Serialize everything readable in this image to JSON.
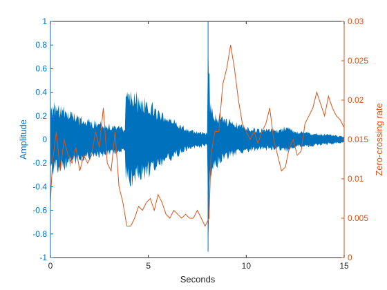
{
  "chart_data": {
    "type": "line",
    "xlabel": "Seconds",
    "ylabel_left": "Amplitude",
    "ylabel_right": "Zero-crossing rate",
    "xlim": [
      0,
      15
    ],
    "ylim_left": [
      -1,
      1
    ],
    "ylim_right": [
      0,
      0.03
    ],
    "x_ticks": [
      "0",
      "5",
      "10",
      "15"
    ],
    "y_left_ticks": [
      "-1",
      "-0.8",
      "-0.6",
      "-0.4",
      "-0.2",
      "0",
      "0.2",
      "0.4",
      "0.6",
      "0.8",
      "1"
    ],
    "y_right_ticks": [
      "0",
      "0.005",
      "0.01",
      "0.015",
      "0.02",
      "0.025",
      "0.03"
    ],
    "grid": false,
    "colors": {
      "amplitude": "#0072BD",
      "zcr": "#D95319",
      "axis": "#262626"
    },
    "series": [
      {
        "axis": "left",
        "envelope": {
          "x": [
            0.0,
            0.2,
            0.5,
            1.0,
            1.5,
            2.0,
            2.5,
            3.0,
            3.5,
            3.8,
            3.85,
            4.0,
            4.5,
            5.0,
            5.5,
            6.0,
            6.5,
            7.0,
            7.5,
            8.0,
            8.05,
            8.15,
            8.3,
            8.5,
            9.0,
            9.5,
            10.0,
            10.5,
            11.0,
            11.5,
            12.0,
            12.5,
            13.0,
            13.5,
            14.0,
            14.5,
            15.0
          ],
          "upper": [
            0.3,
            0.35,
            0.3,
            0.25,
            0.2,
            0.18,
            0.16,
            0.14,
            0.12,
            0.1,
            0.4,
            0.45,
            0.4,
            0.35,
            0.28,
            0.22,
            0.15,
            0.1,
            0.08,
            0.06,
            1.0,
            0.35,
            0.3,
            0.25,
            0.2,
            0.15,
            0.12,
            0.1,
            0.1,
            0.09,
            0.12,
            0.08,
            0.07,
            0.06,
            0.05,
            0.04,
            0.03
          ],
          "lower": [
            -0.3,
            -0.32,
            -0.28,
            -0.25,
            -0.2,
            -0.18,
            -0.16,
            -0.14,
            -0.12,
            -0.1,
            -0.4,
            -0.42,
            -0.38,
            -0.33,
            -0.27,
            -0.2,
            -0.15,
            -0.1,
            -0.08,
            -0.06,
            -0.95,
            -0.35,
            -0.3,
            -0.25,
            -0.18,
            -0.14,
            -0.12,
            -0.1,
            -0.1,
            -0.09,
            -0.12,
            -0.08,
            -0.07,
            -0.06,
            -0.05,
            -0.04,
            -0.03
          ]
        }
      },
      {
        "axis": "right",
        "x": [
          0.0,
          0.1,
          0.3,
          0.5,
          0.7,
          0.9,
          1.1,
          1.3,
          1.5,
          1.7,
          1.9,
          2.1,
          2.3,
          2.5,
          2.7,
          2.9,
          3.1,
          3.3,
          3.5,
          3.7,
          3.9,
          4.1,
          4.3,
          4.5,
          4.7,
          4.9,
          5.1,
          5.3,
          5.5,
          5.7,
          5.9,
          6.1,
          6.3,
          6.5,
          6.7,
          6.9,
          7.1,
          7.3,
          7.5,
          7.7,
          7.9,
          8.1,
          8.2,
          8.4,
          8.6,
          8.8,
          9.0,
          9.2,
          9.4,
          9.6,
          9.8,
          10.0,
          10.2,
          10.4,
          10.6,
          10.8,
          11.0,
          11.2,
          11.4,
          11.6,
          11.8,
          12.0,
          12.2,
          12.4,
          12.6,
          12.8,
          13.0,
          13.2,
          13.4,
          13.6,
          13.8,
          14.0,
          14.2,
          14.4,
          14.6,
          14.8,
          15.0
        ],
        "values": [
          0.007,
          0.012,
          0.016,
          0.011,
          0.015,
          0.013,
          0.012,
          0.014,
          0.011,
          0.013,
          0.012,
          0.013,
          0.016,
          0.014,
          0.019,
          0.012,
          0.011,
          0.016,
          0.009,
          0.007,
          0.004,
          0.004,
          0.005,
          0.0065,
          0.006,
          0.007,
          0.0075,
          0.006,
          0.008,
          0.007,
          0.0055,
          0.005,
          0.006,
          0.0055,
          0.005,
          0.0055,
          0.005,
          0.005,
          0.006,
          0.005,
          0.004,
          0.005,
          0.013,
          0.016,
          0.016,
          0.022,
          0.024,
          0.027,
          0.024,
          0.02,
          0.017,
          0.016,
          0.015,
          0.016,
          0.0145,
          0.016,
          0.017,
          0.019,
          0.015,
          0.013,
          0.011,
          0.0115,
          0.014,
          0.015,
          0.013,
          0.0135,
          0.017,
          0.018,
          0.019,
          0.021,
          0.0195,
          0.018,
          0.0205,
          0.019,
          0.018,
          0.0175,
          0.0165
        ]
      }
    ]
  }
}
